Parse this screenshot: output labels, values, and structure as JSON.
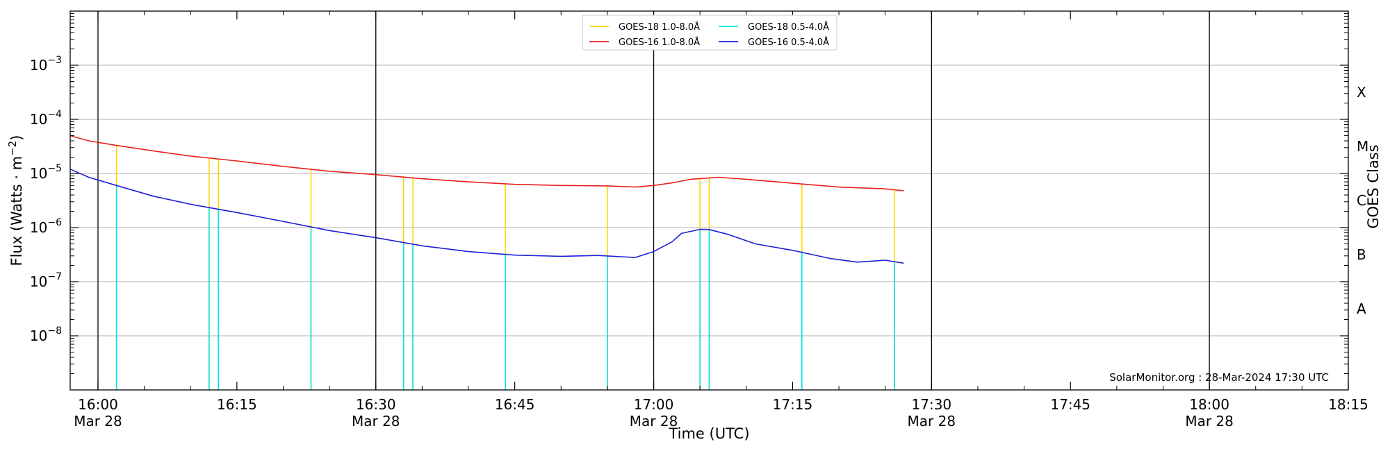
{
  "chart_data": {
    "type": "line",
    "title": "",
    "xlabel": "Time (UTC)",
    "ylabel": "Flux (Watts · m⁻²)",
    "right_ylabel": "GOES Class",
    "xlim": [
      "2024-03-28T15:57",
      "2024-03-28T18:15"
    ],
    "ylim": [
      1e-09,
      0.01
    ],
    "yscale": "log",
    "grid": "horizontal",
    "legend_position": "top-center",
    "x_ticks": [
      {
        "time": "2024-03-28T16:00",
        "line1": "16:00",
        "line2": "Mar 28"
      },
      {
        "time": "2024-03-28T16:15",
        "line1": "16:15",
        "line2": ""
      },
      {
        "time": "2024-03-28T16:30",
        "line1": "16:30",
        "line2": "Mar 28"
      },
      {
        "time": "2024-03-28T16:45",
        "line1": "16:45",
        "line2": ""
      },
      {
        "time": "2024-03-28T17:00",
        "line1": "17:00",
        "line2": "Mar 28"
      },
      {
        "time": "2024-03-28T17:15",
        "line1": "17:15",
        "line2": ""
      },
      {
        "time": "2024-03-28T17:30",
        "line1": "17:30",
        "line2": "Mar 28"
      },
      {
        "time": "2024-03-28T17:45",
        "line1": "17:45",
        "line2": ""
      },
      {
        "time": "2024-03-28T18:00",
        "line1": "18:00",
        "line2": "Mar 28"
      },
      {
        "time": "2024-03-28T18:15",
        "line1": "18:15",
        "line2": ""
      }
    ],
    "day_lines": [
      "2024-03-28T16:00",
      "2024-03-28T16:30",
      "2024-03-28T17:00",
      "2024-03-28T17:30",
      "2024-03-28T18:00"
    ],
    "y_ticks": [
      {
        "value": 1e-08,
        "base": "10",
        "exp": "−8"
      },
      {
        "value": 1e-07,
        "base": "10",
        "exp": "−7"
      },
      {
        "value": 1e-06,
        "base": "10",
        "exp": "−6"
      },
      {
        "value": 1e-05,
        "base": "10",
        "exp": "−5"
      },
      {
        "value": 0.0001,
        "base": "10",
        "exp": "−4"
      },
      {
        "value": 0.001,
        "base": "10",
        "exp": "−3"
      }
    ],
    "goes_classes": [
      {
        "label": "A",
        "value": 3.16e-08
      },
      {
        "label": "B",
        "value": 3.16e-07
      },
      {
        "label": "C",
        "value": 3.16e-06
      },
      {
        "label": "M",
        "value": 3.16e-05
      },
      {
        "label": "X",
        "value": 0.000316
      }
    ],
    "series": [
      {
        "name": "GOES-18 1.0-8.0Å",
        "color": "#ffd700",
        "spikes": [
          {
            "time": "2024-03-28T16:02",
            "value": 3.3e-05
          },
          {
            "time": "2024-03-28T16:12",
            "value": 1.9e-05
          },
          {
            "time": "2024-03-28T16:13",
            "value": 1.8e-05
          },
          {
            "time": "2024-03-28T16:23",
            "value": 1.2e-05
          },
          {
            "time": "2024-03-28T16:33",
            "value": 8.5e-06
          },
          {
            "time": "2024-03-28T16:34",
            "value": 8.2e-06
          },
          {
            "time": "2024-03-28T16:44",
            "value": 6.2e-06
          },
          {
            "time": "2024-03-28T16:55",
            "value": 5.8e-06
          },
          {
            "time": "2024-03-28T17:05",
            "value": 8.3e-06
          },
          {
            "time": "2024-03-28T17:06",
            "value": 8.4e-06
          },
          {
            "time": "2024-03-28T17:16",
            "value": 6.3e-06
          },
          {
            "time": "2024-03-28T17:26",
            "value": 5.1e-06
          }
        ]
      },
      {
        "name": "GOES-18 0.5-4.0Å",
        "color": "#00e5ee",
        "spikes": [
          {
            "time": "2024-03-28T16:02",
            "value": 6.2e-06
          },
          {
            "time": "2024-03-28T16:12",
            "value": 2.3e-06
          },
          {
            "time": "2024-03-28T16:13",
            "value": 2.2e-06
          },
          {
            "time": "2024-03-28T16:23",
            "value": 9.5e-07
          },
          {
            "time": "2024-03-28T16:33",
            "value": 5.1e-07
          },
          {
            "time": "2024-03-28T16:34",
            "value": 4.8e-07
          },
          {
            "time": "2024-03-28T16:44",
            "value": 3.1e-07
          },
          {
            "time": "2024-03-28T16:55",
            "value": 2.9e-07
          },
          {
            "time": "2024-03-28T17:05",
            "value": 9.3e-07
          },
          {
            "time": "2024-03-28T17:06",
            "value": 9.2e-07
          },
          {
            "time": "2024-03-28T17:16",
            "value": 3.6e-07
          },
          {
            "time": "2024-03-28T17:26",
            "value": 2.4e-07
          }
        ]
      },
      {
        "name": "GOES-16 1.0-8.0Å",
        "color": "#e8201b",
        "points": [
          {
            "time": "2024-03-28T15:57",
            "value": 5e-05
          },
          {
            "time": "2024-03-28T15:59",
            "value": 4e-05
          },
          {
            "time": "2024-03-28T16:02",
            "value": 3.3e-05
          },
          {
            "time": "2024-03-28T16:06",
            "value": 2.6e-05
          },
          {
            "time": "2024-03-28T16:10",
            "value": 2.1e-05
          },
          {
            "time": "2024-03-28T16:15",
            "value": 1.7e-05
          },
          {
            "time": "2024-03-28T16:20",
            "value": 1.35e-05
          },
          {
            "time": "2024-03-28T16:25",
            "value": 1.1e-05
          },
          {
            "time": "2024-03-28T16:30",
            "value": 9.5e-06
          },
          {
            "time": "2024-03-28T16:35",
            "value": 8e-06
          },
          {
            "time": "2024-03-28T16:40",
            "value": 7e-06
          },
          {
            "time": "2024-03-28T16:45",
            "value": 6.3e-06
          },
          {
            "time": "2024-03-28T16:50",
            "value": 6e-06
          },
          {
            "time": "2024-03-28T16:55",
            "value": 5.9e-06
          },
          {
            "time": "2024-03-28T16:58",
            "value": 5.6e-06
          },
          {
            "time": "2024-03-28T17:00",
            "value": 6e-06
          },
          {
            "time": "2024-03-28T17:02",
            "value": 6.7e-06
          },
          {
            "time": "2024-03-28T17:04",
            "value": 7.8e-06
          },
          {
            "time": "2024-03-28T17:07",
            "value": 8.5e-06
          },
          {
            "time": "2024-03-28T17:10",
            "value": 7.8e-06
          },
          {
            "time": "2024-03-28T17:15",
            "value": 6.6e-06
          },
          {
            "time": "2024-03-28T17:20",
            "value": 5.6e-06
          },
          {
            "time": "2024-03-28T17:25",
            "value": 5.2e-06
          },
          {
            "time": "2024-03-28T17:27",
            "value": 4.8e-06
          }
        ]
      },
      {
        "name": "GOES-16 0.5-4.0Å",
        "color": "#1d1fd6",
        "points": [
          {
            "time": "2024-03-28T15:57",
            "value": 1.2e-05
          },
          {
            "time": "2024-03-28T15:59",
            "value": 8.5e-06
          },
          {
            "time": "2024-03-28T16:02",
            "value": 6e-06
          },
          {
            "time": "2024-03-28T16:06",
            "value": 3.8e-06
          },
          {
            "time": "2024-03-28T16:10",
            "value": 2.7e-06
          },
          {
            "time": "2024-03-28T16:15",
            "value": 1.9e-06
          },
          {
            "time": "2024-03-28T16:20",
            "value": 1.3e-06
          },
          {
            "time": "2024-03-28T16:25",
            "value": 8.8e-07
          },
          {
            "time": "2024-03-28T16:30",
            "value": 6.5e-07
          },
          {
            "time": "2024-03-28T16:35",
            "value": 4.6e-07
          },
          {
            "time": "2024-03-28T16:40",
            "value": 3.6e-07
          },
          {
            "time": "2024-03-28T16:45",
            "value": 3.1e-07
          },
          {
            "time": "2024-03-28T16:50",
            "value": 2.95e-07
          },
          {
            "time": "2024-03-28T16:54",
            "value": 3.05e-07
          },
          {
            "time": "2024-03-28T16:58",
            "value": 2.8e-07
          },
          {
            "time": "2024-03-28T17:00",
            "value": 3.6e-07
          },
          {
            "time": "2024-03-28T17:02",
            "value": 5.5e-07
          },
          {
            "time": "2024-03-28T17:03",
            "value": 7.8e-07
          },
          {
            "time": "2024-03-28T17:05",
            "value": 9.3e-07
          },
          {
            "time": "2024-03-28T17:06",
            "value": 9.2e-07
          },
          {
            "time": "2024-03-28T17:08",
            "value": 7.5e-07
          },
          {
            "time": "2024-03-28T17:11",
            "value": 5e-07
          },
          {
            "time": "2024-03-28T17:15",
            "value": 3.8e-07
          },
          {
            "time": "2024-03-28T17:19",
            "value": 2.7e-07
          },
          {
            "time": "2024-03-28T17:22",
            "value": 2.3e-07
          },
          {
            "time": "2024-03-28T17:25",
            "value": 2.5e-07
          },
          {
            "time": "2024-03-28T17:27",
            "value": 2.2e-07
          }
        ]
      }
    ],
    "legend_order": [
      0,
      1,
      2,
      3
    ],
    "credit": "SolarMonitor.org : 28-Mar-2024 17:30 UTC"
  }
}
